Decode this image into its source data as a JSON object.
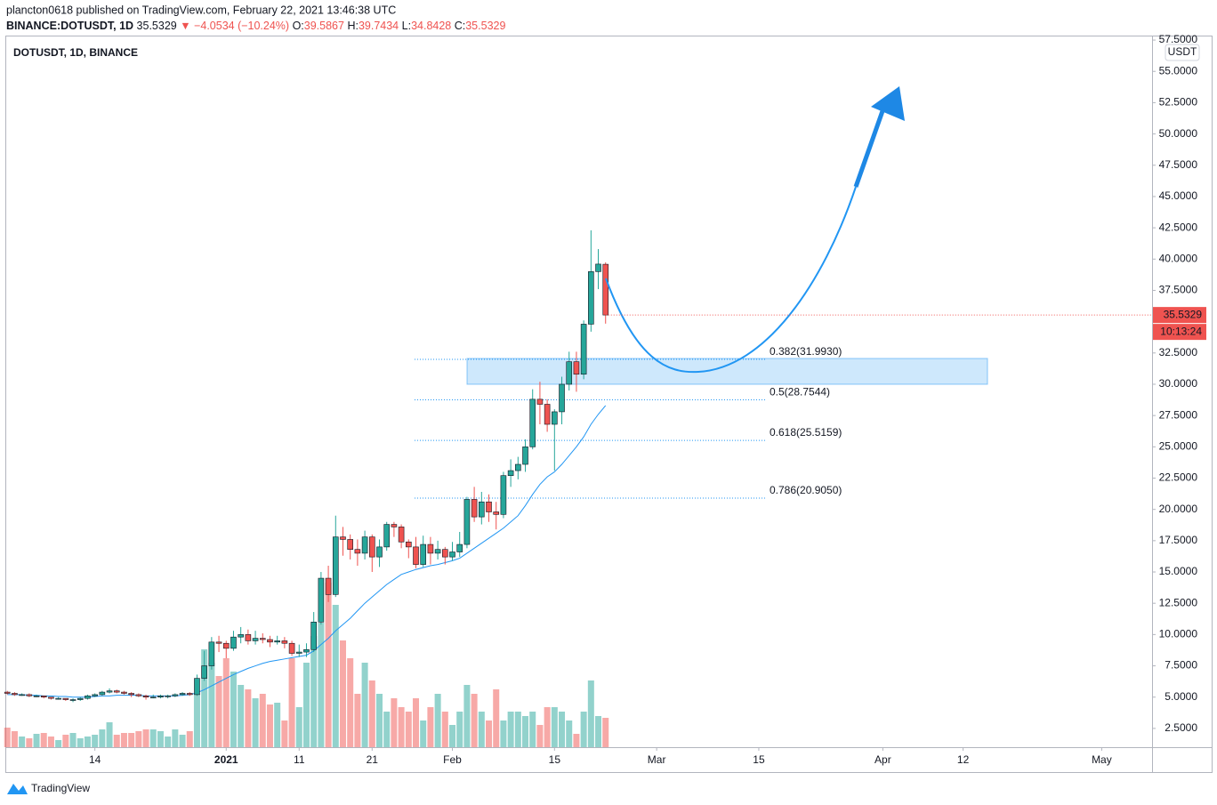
{
  "header": {
    "author_line": "plancton0618 published on TradingView.com, February 22, 2021 13:46:38 UTC",
    "symbol": "BINANCE:DOTUSDT, 1D",
    "last": "35.5329",
    "change": "▼ −4.0534 (−10.24%)",
    "ohlc": [
      {
        "key": "O:",
        "value": "39.5867"
      },
      {
        "key": "H:",
        "value": "39.7434"
      },
      {
        "key": "L:",
        "value": "34.8428"
      },
      {
        "key": "C:",
        "value": "35.5329"
      }
    ]
  },
  "footer": {
    "brand": "TradingView"
  },
  "chart_data": {
    "type": "candlestick",
    "title": "DOTUSDT, 1D, BINANCE",
    "currency": "USDT",
    "up_color": "#26a69a",
    "down_color": "#ef5350",
    "ma_color": "#2196f3",
    "fib_color": "#2196f3",
    "grid": false,
    "last_price_label": "35.5329",
    "countdown": "10:13:24",
    "xlim": [
      0.85,
      157.9
    ],
    "xticks": [
      {
        "value": 13,
        "label": "14"
      },
      {
        "value": 31,
        "label": "2021"
      },
      {
        "value": 41,
        "label": "11"
      },
      {
        "value": 51,
        "label": "21"
      },
      {
        "value": 62,
        "label": "Feb"
      },
      {
        "value": 76,
        "label": "15"
      },
      {
        "value": 90,
        "label": "Mar"
      },
      {
        "value": 104,
        "label": "15"
      },
      {
        "value": 121,
        "label": "Apr"
      },
      {
        "value": 132,
        "label": "12"
      },
      {
        "value": 151,
        "label": "May"
      }
    ],
    "ylim": [
      1.0,
      57.86
    ],
    "yticks": [
      {
        "value": 2.5,
        "label": "2.5000"
      },
      {
        "value": 5,
        "label": "5.0000"
      },
      {
        "value": 7.5,
        "label": "7.5000"
      },
      {
        "value": 10,
        "label": "10.0000"
      },
      {
        "value": 12.5,
        "label": "12.5000"
      },
      {
        "value": 15,
        "label": "15.0000"
      },
      {
        "value": 17.5,
        "label": "17.5000"
      },
      {
        "value": 20,
        "label": "20.0000"
      },
      {
        "value": 22.5,
        "label": "22.5000"
      },
      {
        "value": 25,
        "label": "25.0000"
      },
      {
        "value": 27.5,
        "label": "27.5000"
      },
      {
        "value": 30,
        "label": "30.0000"
      },
      {
        "value": 32.5,
        "label": "32.5000"
      },
      {
        "value": 37.5,
        "label": "37.5000"
      },
      {
        "value": 40,
        "label": "40.0000"
      },
      {
        "value": 42.5,
        "label": "42.5000"
      },
      {
        "value": 45,
        "label": "45.0000"
      },
      {
        "value": 47.5,
        "label": "47.5000"
      },
      {
        "value": 50,
        "label": "50.0000"
      },
      {
        "value": 52.5,
        "label": "52.5000"
      },
      {
        "value": 55,
        "label": "55.0000"
      },
      {
        "value": 57.5,
        "label": "57.5000"
      }
    ],
    "fib_levels": [
      {
        "label": "0.382(31.9930)",
        "value": 31.993
      },
      {
        "label": "0.5(28.7544)",
        "value": 28.7544
      },
      {
        "label": "0.618(25.5159)",
        "value": 25.5159
      },
      {
        "label": "0.786(20.9050)",
        "value": 20.905
      }
    ],
    "x": [
      1,
      2,
      3,
      4,
      5,
      6,
      7,
      8,
      9,
      10,
      11,
      12,
      13,
      14,
      15,
      16,
      17,
      18,
      19,
      20,
      21,
      22,
      23,
      24,
      25,
      26,
      27,
      28,
      29,
      30,
      31,
      32,
      33,
      34,
      35,
      36,
      37,
      38,
      39,
      40,
      41,
      42,
      43,
      44,
      45,
      46,
      47,
      48,
      49,
      50,
      51,
      52,
      53,
      54,
      55,
      56,
      57,
      58,
      59,
      60,
      61,
      62,
      63,
      64,
      65,
      66,
      67,
      68,
      69,
      70,
      71,
      72,
      73,
      74,
      75,
      76,
      77,
      78,
      79,
      80,
      81,
      82,
      83
    ],
    "open": [
      5.4,
      5.3,
      5.2,
      5.2,
      5.1,
      5.1,
      5.0,
      4.9,
      4.9,
      4.8,
      4.8,
      4.9,
      5.1,
      5.2,
      5.4,
      5.5,
      5.4,
      5.3,
      5.2,
      5.1,
      5.0,
      5.0,
      5.1,
      5.1,
      5.2,
      5.3,
      5.2,
      6.5,
      7.5,
      9.4,
      9.3,
      8.9,
      9.8,
      10.0,
      9.5,
      9.7,
      9.6,
      9.4,
      9.5,
      9.3,
      8.5,
      8.6,
      8.8,
      11.0,
      14.5,
      13.2,
      17.8,
      17.6,
      16.8,
      16.5,
      17.8,
      16.2,
      17.0,
      18.8,
      18.6,
      17.4,
      17.0,
      15.6,
      17.2,
      16.5,
      16.8,
      16.2,
      16.6,
      17.2,
      20.8,
      19.4,
      20.6,
      19.8,
      19.6,
      22.7,
      23.1,
      23.6,
      25.0,
      28.8,
      28.4,
      26.8,
      27.8,
      30.0,
      31.8,
      30.8,
      34.8,
      39.0,
      39.5867
    ],
    "high": [
      5.5,
      5.4,
      5.3,
      5.3,
      5.2,
      5.1,
      5.0,
      5.0,
      4.9,
      4.9,
      5.0,
      5.2,
      5.3,
      5.5,
      5.7,
      5.6,
      5.5,
      5.4,
      5.3,
      5.2,
      5.2,
      5.2,
      5.2,
      5.3,
      5.4,
      5.4,
      6.8,
      8.7,
      9.8,
      9.9,
      9.5,
      10.3,
      10.6,
      10.4,
      10.3,
      10.1,
      9.9,
      9.9,
      9.8,
      9.5,
      9.2,
      9.3,
      11.8,
      15.0,
      15.5,
      19.5,
      18.6,
      18.0,
      17.6,
      18.3,
      18.0,
      17.6,
      19.0,
      19.0,
      18.8,
      17.6,
      17.8,
      17.9,
      17.8,
      17.5,
      17.0,
      17.4,
      18.2,
      21.0,
      21.8,
      21.4,
      21.2,
      20.6,
      23.0,
      24.0,
      24.2,
      25.6,
      29.6,
      30.2,
      28.8,
      28.0,
      30.6,
      32.6,
      32.6,
      35.1,
      42.3,
      40.8,
      39.7434
    ],
    "low": [
      5.2,
      5.1,
      5.1,
      5.0,
      5.0,
      4.9,
      4.8,
      4.8,
      4.7,
      4.6,
      4.7,
      4.8,
      5.0,
      5.1,
      5.3,
      5.3,
      5.2,
      5.0,
      5.0,
      4.8,
      4.9,
      4.9,
      4.9,
      5.0,
      5.1,
      5.1,
      5.1,
      6.3,
      7.2,
      8.6,
      8.1,
      8.7,
      9.3,
      9.2,
      9.2,
      9.3,
      9.0,
      9.2,
      8.9,
      8.3,
      8.2,
      8.2,
      8.6,
      10.8,
      12.6,
      13.0,
      16.3,
      16.0,
      15.5,
      16.0,
      15.0,
      15.4,
      16.7,
      17.8,
      16.9,
      16.1,
      15.3,
      15.4,
      15.6,
      16.0,
      15.6,
      15.9,
      16.2,
      16.9,
      19.0,
      18.8,
      19.0,
      18.4,
      19.3,
      21.8,
      22.4,
      23.0,
      24.8,
      26.8,
      26.2,
      23.1,
      26.8,
      29.5,
      29.4,
      30.4,
      34.2,
      37.6,
      34.8428
    ],
    "close": [
      5.3,
      5.2,
      5.2,
      5.1,
      5.1,
      5.0,
      4.9,
      4.9,
      4.8,
      4.8,
      4.9,
      5.1,
      5.2,
      5.4,
      5.5,
      5.4,
      5.3,
      5.2,
      5.1,
      5.0,
      5.0,
      5.1,
      5.1,
      5.2,
      5.3,
      5.2,
      6.5,
      7.5,
      9.4,
      9.3,
      8.9,
      9.8,
      10.0,
      9.5,
      9.7,
      9.6,
      9.4,
      9.5,
      9.3,
      8.5,
      8.6,
      8.8,
      11.0,
      14.5,
      13.2,
      17.8,
      17.6,
      16.8,
      16.5,
      17.8,
      16.2,
      17.0,
      18.8,
      18.6,
      17.4,
      17.0,
      15.6,
      17.2,
      16.5,
      16.8,
      16.2,
      16.6,
      17.2,
      20.8,
      19.4,
      20.6,
      19.8,
      19.6,
      22.7,
      23.1,
      23.6,
      25.0,
      28.8,
      28.4,
      26.8,
      27.8,
      30.0,
      31.8,
      30.8,
      34.8,
      39.0,
      39.6,
      35.5329
    ],
    "volume": [
      22,
      18,
      12,
      10,
      15,
      16,
      12,
      8,
      14,
      16,
      10,
      12,
      14,
      20,
      28,
      14,
      16,
      16,
      18,
      20,
      20,
      18,
      12,
      20,
      14,
      18,
      60,
      110,
      95,
      80,
      100,
      85,
      70,
      65,
      55,
      60,
      48,
      50,
      30,
      100,
      45,
      95,
      125,
      140,
      185,
      160,
      120,
      100,
      60,
      95,
      75,
      60,
      40,
      55,
      45,
      40,
      55,
      30,
      45,
      60,
      40,
      25,
      40,
      70,
      60,
      40,
      30,
      65,
      30,
      40,
      40,
      35,
      40,
      25,
      45,
      45,
      40,
      30,
      15,
      40,
      75,
      35,
      33
    ],
    "ma": [
      5.2,
      5.2,
      5.2,
      5.15,
      5.15,
      5.1,
      5.1,
      5.05,
      5.05,
      5.0,
      5.0,
      5.0,
      5.05,
      5.1,
      5.1,
      5.15,
      5.15,
      5.15,
      5.15,
      5.1,
      5.1,
      5.1,
      5.1,
      5.1,
      5.15,
      5.2,
      5.35,
      5.6,
      5.9,
      6.2,
      6.5,
      6.8,
      7.05,
      7.3,
      7.5,
      7.7,
      7.85,
      7.95,
      8.05,
      8.15,
      8.25,
      8.35,
      8.7,
      9.2,
      9.7,
      10.3,
      10.8,
      11.3,
      11.9,
      12.5,
      13.0,
      13.5,
      14.0,
      14.4,
      14.8,
      15.0,
      15.2,
      15.35,
      15.5,
      15.6,
      15.75,
      15.9,
      16.1,
      16.5,
      16.9,
      17.3,
      17.7,
      18.1,
      18.5,
      19.0,
      19.5,
      20.3,
      21.2,
      22.0,
      22.6,
      23.0,
      23.6,
      24.3,
      25.0,
      25.8,
      26.8,
      27.6,
      28.3
    ]
  }
}
